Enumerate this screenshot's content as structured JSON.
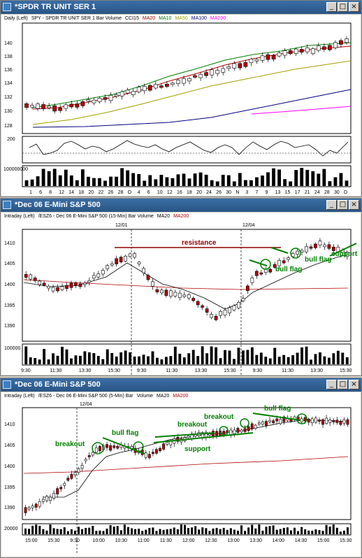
{
  "windows": [
    {
      "id": "w1",
      "title": "*SPDR TR UNIT SER 1",
      "legend": [
        {
          "text": "Daily (Left)",
          "color": "#000000"
        },
        {
          "text": "SPY - SPDR TR UNIT SER 1  Bar  Volume",
          "color": "#000000"
        },
        {
          "text": "CCI15",
          "color": "#000000"
        },
        {
          "text": "MA20",
          "color": "#b00000"
        },
        {
          "text": "MA10",
          "color": "#008000"
        },
        {
          "text": "MA50",
          "color": "#a0a000"
        },
        {
          "text": "MA100",
          "color": "#000080"
        },
        {
          "text": "MA200",
          "color": "#ff00ff"
        }
      ],
      "y_ticks": [
        "140",
        "138",
        "136",
        "134",
        "132",
        "130",
        "128"
      ],
      "cci_tick": "200",
      "vol_tick": "100000000",
      "x_ticks": [
        "1",
        "6",
        "8",
        "12",
        "14",
        "18",
        "20",
        "22",
        "26",
        "28",
        "O",
        "4",
        "6",
        "10",
        "12",
        "16",
        "18",
        "20",
        "24",
        "26",
        "30",
        "N",
        "3",
        "7",
        "9",
        "13",
        "15",
        "17",
        "21",
        "24",
        "28",
        "30",
        "D"
      ]
    },
    {
      "id": "w2",
      "title": "*Dec 06  E-Mini S&P 500",
      "legend": [
        {
          "text": "Intraday  (Left)",
          "color": "#000000"
        },
        {
          "text": "/ESZ6 - Dec 06  E-Mini S&P 500  (15-Min)  Bar  Volume",
          "color": "#000000"
        },
        {
          "text": "MA20",
          "color": "#000000"
        },
        {
          "text": "MA200",
          "color": "#b00000"
        }
      ],
      "date_labels": [
        "12/01",
        "12/04"
      ],
      "y_ticks": [
        "1410",
        "1405",
        "1400",
        "1395",
        "1390"
      ],
      "vol_tick": "100000",
      "x_ticks": [
        "9:30",
        "11:30",
        "13:30",
        "15:30",
        "9:30",
        "11:30",
        "13:30",
        "15:30",
        "9:30",
        "11:30",
        "13:30",
        "15:30"
      ],
      "annotations": {
        "resistance": "resistance",
        "bull_flag_1": "bull flag",
        "bull_flag_2": "bull flag",
        "support": "support"
      }
    },
    {
      "id": "w3",
      "title": "*Dec 06  E-Mini S&P 500",
      "legend": [
        {
          "text": "Intraday  (Left)",
          "color": "#000000"
        },
        {
          "text": "/ESZ6 - Dec 06  E-Mini S&P 500  (5-Min)  Bar",
          "color": "#000000"
        },
        {
          "text": "Volume",
          "color": "#000000"
        },
        {
          "text": "MA20",
          "color": "#000000"
        },
        {
          "text": "MA200",
          "color": "#b00000"
        }
      ],
      "date_labels": [
        "12/04"
      ],
      "y_ticks": [
        "1410",
        "1405",
        "1400",
        "1395",
        "1390"
      ],
      "vol_tick": "20000",
      "x_ticks": [
        "15:00",
        "15:30",
        "9:30",
        "10:00",
        "10:30",
        "11:00",
        "11:30",
        "12:00",
        "12:30",
        "13:00",
        "13:30",
        "14:00",
        "14:30",
        "15:00",
        "15:30"
      ],
      "annotations": {
        "breakout_1": "breakout",
        "bull_flag_1": "bull flag",
        "breakout_2": "breakout",
        "support": "support",
        "breakout_3": "breakout",
        "bull_flag_2": "bull flag"
      }
    }
  ],
  "colors": {
    "title_bg": "#2a5585",
    "up": "#ffffff",
    "down": "#b00000",
    "annot_green": "#008000",
    "resistance": "#8b0000"
  }
}
